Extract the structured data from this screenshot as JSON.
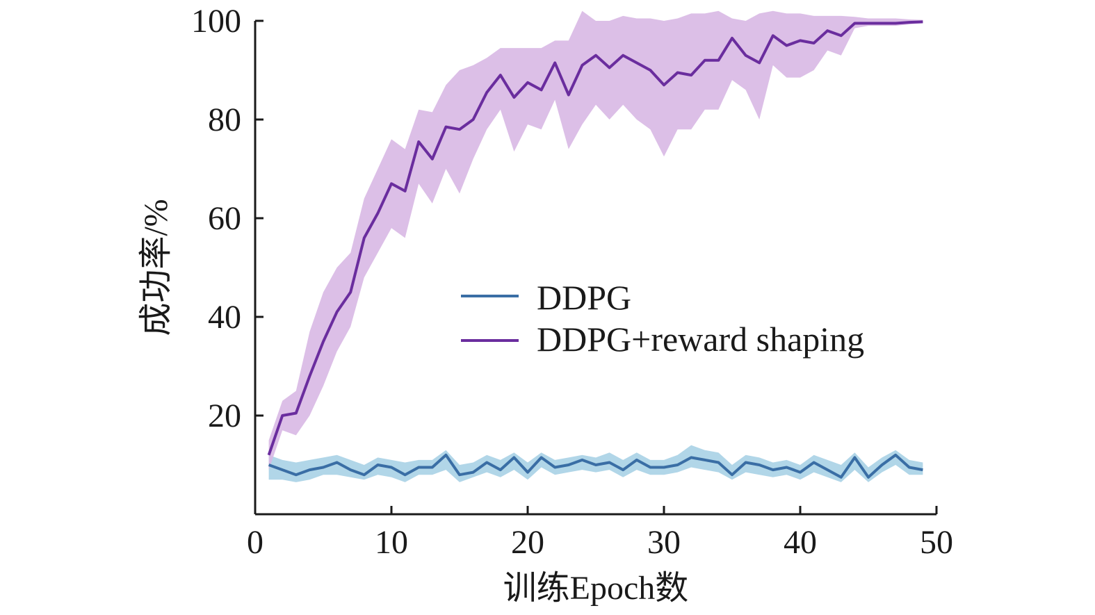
{
  "chart_data": {
    "type": "line",
    "xlabel": "训练Epoch数",
    "ylabel": "成功率/%",
    "xlim": [
      0,
      50
    ],
    "ylim": [
      0,
      100
    ],
    "xticks": [
      0,
      10,
      20,
      30,
      40,
      50
    ],
    "yticks": [
      20,
      40,
      60,
      80,
      100
    ],
    "grid": false,
    "legend_position": "center-right",
    "x": [
      1,
      2,
      3,
      4,
      5,
      6,
      7,
      8,
      9,
      10,
      11,
      12,
      13,
      14,
      15,
      16,
      17,
      18,
      19,
      20,
      21,
      22,
      23,
      24,
      25,
      26,
      27,
      28,
      29,
      30,
      31,
      32,
      33,
      34,
      35,
      36,
      37,
      38,
      39,
      40,
      41,
      42,
      43,
      44,
      45,
      46,
      47,
      48,
      49
    ],
    "series": [
      {
        "name": "DDPG",
        "color": "#3a6ea5",
        "band_color": "#a9d2e6",
        "values": [
          10,
          9,
          8,
          9,
          9.5,
          10.5,
          9,
          8,
          10,
          9.5,
          8,
          9.5,
          9.5,
          12,
          8,
          8.5,
          10.5,
          9,
          11.5,
          8.5,
          11.5,
          9.5,
          10,
          11,
          10,
          10.5,
          9,
          11,
          9.5,
          9.5,
          10,
          11.5,
          11,
          10.5,
          8,
          10.5,
          10,
          9,
          9.5,
          8.5,
          10.5,
          9,
          7.5,
          11.5,
          7.5,
          10,
          12,
          9.5,
          9
        ],
        "lower": [
          7,
          7,
          6.5,
          7,
          8,
          8,
          7.5,
          7,
          8,
          7.5,
          6.5,
          8,
          8,
          9,
          6.5,
          7.5,
          8.5,
          7.5,
          9,
          7,
          9.5,
          8,
          8.5,
          9,
          8.5,
          9,
          7.5,
          9,
          8,
          8,
          8.5,
          9.5,
          9,
          8.5,
          7,
          8.5,
          8,
          7.5,
          8,
          7,
          8.5,
          7.5,
          6.5,
          9,
          6.5,
          8.5,
          10,
          8,
          8
        ],
        "upper": [
          12,
          11,
          10.5,
          11,
          11.5,
          12,
          11,
          10,
          11.5,
          11,
          10.5,
          11,
          11,
          13,
          10,
          10.5,
          12,
          11,
          12.5,
          10.5,
          12.5,
          11,
          11.5,
          12,
          11.5,
          12.5,
          11,
          12.5,
          11,
          11,
          12,
          14,
          13,
          12.5,
          10,
          12,
          11.5,
          10.5,
          11,
          10,
          12,
          11,
          10,
          12.5,
          9.5,
          11.5,
          13,
          11,
          10.5
        ]
      },
      {
        "name": "DDPG+reward shaping",
        "color": "#6a2d9e",
        "band_color": "#d8b8e4",
        "values": [
          12,
          20,
          20.5,
          28,
          35,
          41,
          45,
          56,
          61,
          67,
          65.5,
          75.5,
          72,
          78.5,
          78,
          80,
          85.5,
          89,
          84.5,
          87.5,
          86,
          91.5,
          85,
          91,
          93,
          90.5,
          93,
          91.5,
          90,
          87,
          89.5,
          89,
          92,
          92,
          96.5,
          93,
          91.5,
          97,
          95,
          96,
          95.5,
          98,
          97,
          99.5,
          99.5,
          99.5,
          99.5,
          99.7,
          99.8
        ],
        "lower": [
          9,
          17,
          16,
          20,
          26,
          33,
          38,
          48,
          53,
          58,
          56,
          67,
          63,
          70,
          65,
          72,
          78,
          82,
          73.5,
          79,
          78,
          84,
          74,
          79,
          83,
          80,
          83,
          80,
          78,
          72.5,
          78,
          78,
          82,
          82,
          88,
          86,
          80,
          91,
          88.5,
          88.5,
          90,
          94,
          93,
          98.5,
          99,
          99,
          99,
          99.3,
          99.5
        ],
        "upper": [
          15,
          23,
          25,
          37,
          45,
          50,
          53,
          64,
          70,
          76,
          74,
          82,
          81.5,
          87,
          90,
          91,
          92.5,
          94.5,
          94.5,
          94.5,
          94.5,
          96,
          96,
          102,
          100,
          100,
          101,
          100.5,
          100.5,
          100,
          100.5,
          101.5,
          101.5,
          102,
          100.5,
          100,
          101.5,
          102,
          101.5,
          101.5,
          101,
          101,
          101,
          100.8,
          100.5,
          100.5,
          100.5,
          100.3,
          100.2
        ]
      }
    ]
  }
}
